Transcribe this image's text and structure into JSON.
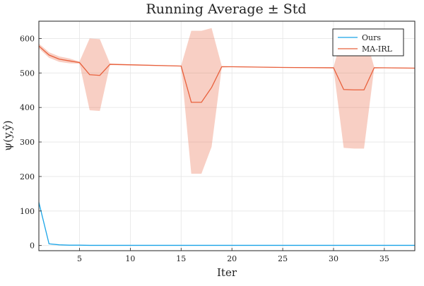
{
  "chart_data": {
    "type": "line",
    "title": "Running Average ± Std",
    "xlabel": "Iter",
    "ylabel": "ψ(y,ŷ)",
    "xlim": [
      1,
      38
    ],
    "ylim": [
      -15,
      650
    ],
    "xticks": [
      5,
      10,
      15,
      20,
      25,
      30,
      35
    ],
    "yticks": [
      0,
      100,
      200,
      300,
      400,
      500,
      600
    ],
    "grid": true,
    "legend_position": "top-right",
    "series": [
      {
        "name": "Ours",
        "color": "#1ba5e8",
        "x": [
          1,
          2,
          3,
          4,
          5,
          6,
          7,
          8,
          9,
          10,
          11,
          12,
          13,
          14,
          15,
          16,
          17,
          18,
          19,
          20,
          21,
          22,
          23,
          24,
          25,
          26,
          27,
          28,
          29,
          30,
          31,
          32,
          33,
          34,
          35,
          36,
          37,
          38
        ],
        "y": [
          125,
          5,
          2,
          1,
          1,
          0.5,
          0.5,
          0.5,
          0.5,
          0.5,
          0.5,
          0.5,
          0.5,
          0.5,
          0.5,
          0.5,
          0.5,
          0.5,
          0.5,
          0.5,
          0.5,
          0.5,
          0.5,
          0.5,
          0.5,
          0.5,
          0.5,
          0.5,
          0.5,
          0.5,
          0.5,
          0.5,
          0.5,
          0.5,
          0.5,
          0.5,
          0.5,
          0.5
        ]
      },
      {
        "name": "MA-IRL",
        "color": "#e8603c",
        "band_color": "#e8603c",
        "x": [
          1,
          2,
          3,
          4,
          5,
          6,
          7,
          8,
          15,
          16,
          17,
          18,
          19,
          20,
          25,
          30,
          31,
          32,
          33,
          34,
          35,
          38
        ],
        "y": [
          578,
          552,
          540,
          535,
          530,
          495,
          493,
          525,
          520,
          415,
          415,
          458,
          518,
          518,
          516,
          515,
          452,
          451,
          451,
          515,
          515,
          514
        ],
        "upper": [
          585,
          560,
          548,
          542,
          533,
          600,
          598,
          527,
          521,
          622,
          622,
          630,
          520,
          519,
          517,
          517,
          622,
          622,
          622,
          517,
          516,
          515
        ],
        "lower": [
          571,
          544,
          532,
          528,
          527,
          392,
          390,
          523,
          519,
          208,
          208,
          286,
          516,
          517,
          515,
          513,
          283,
          281,
          281,
          513,
          514,
          513
        ]
      }
    ]
  }
}
